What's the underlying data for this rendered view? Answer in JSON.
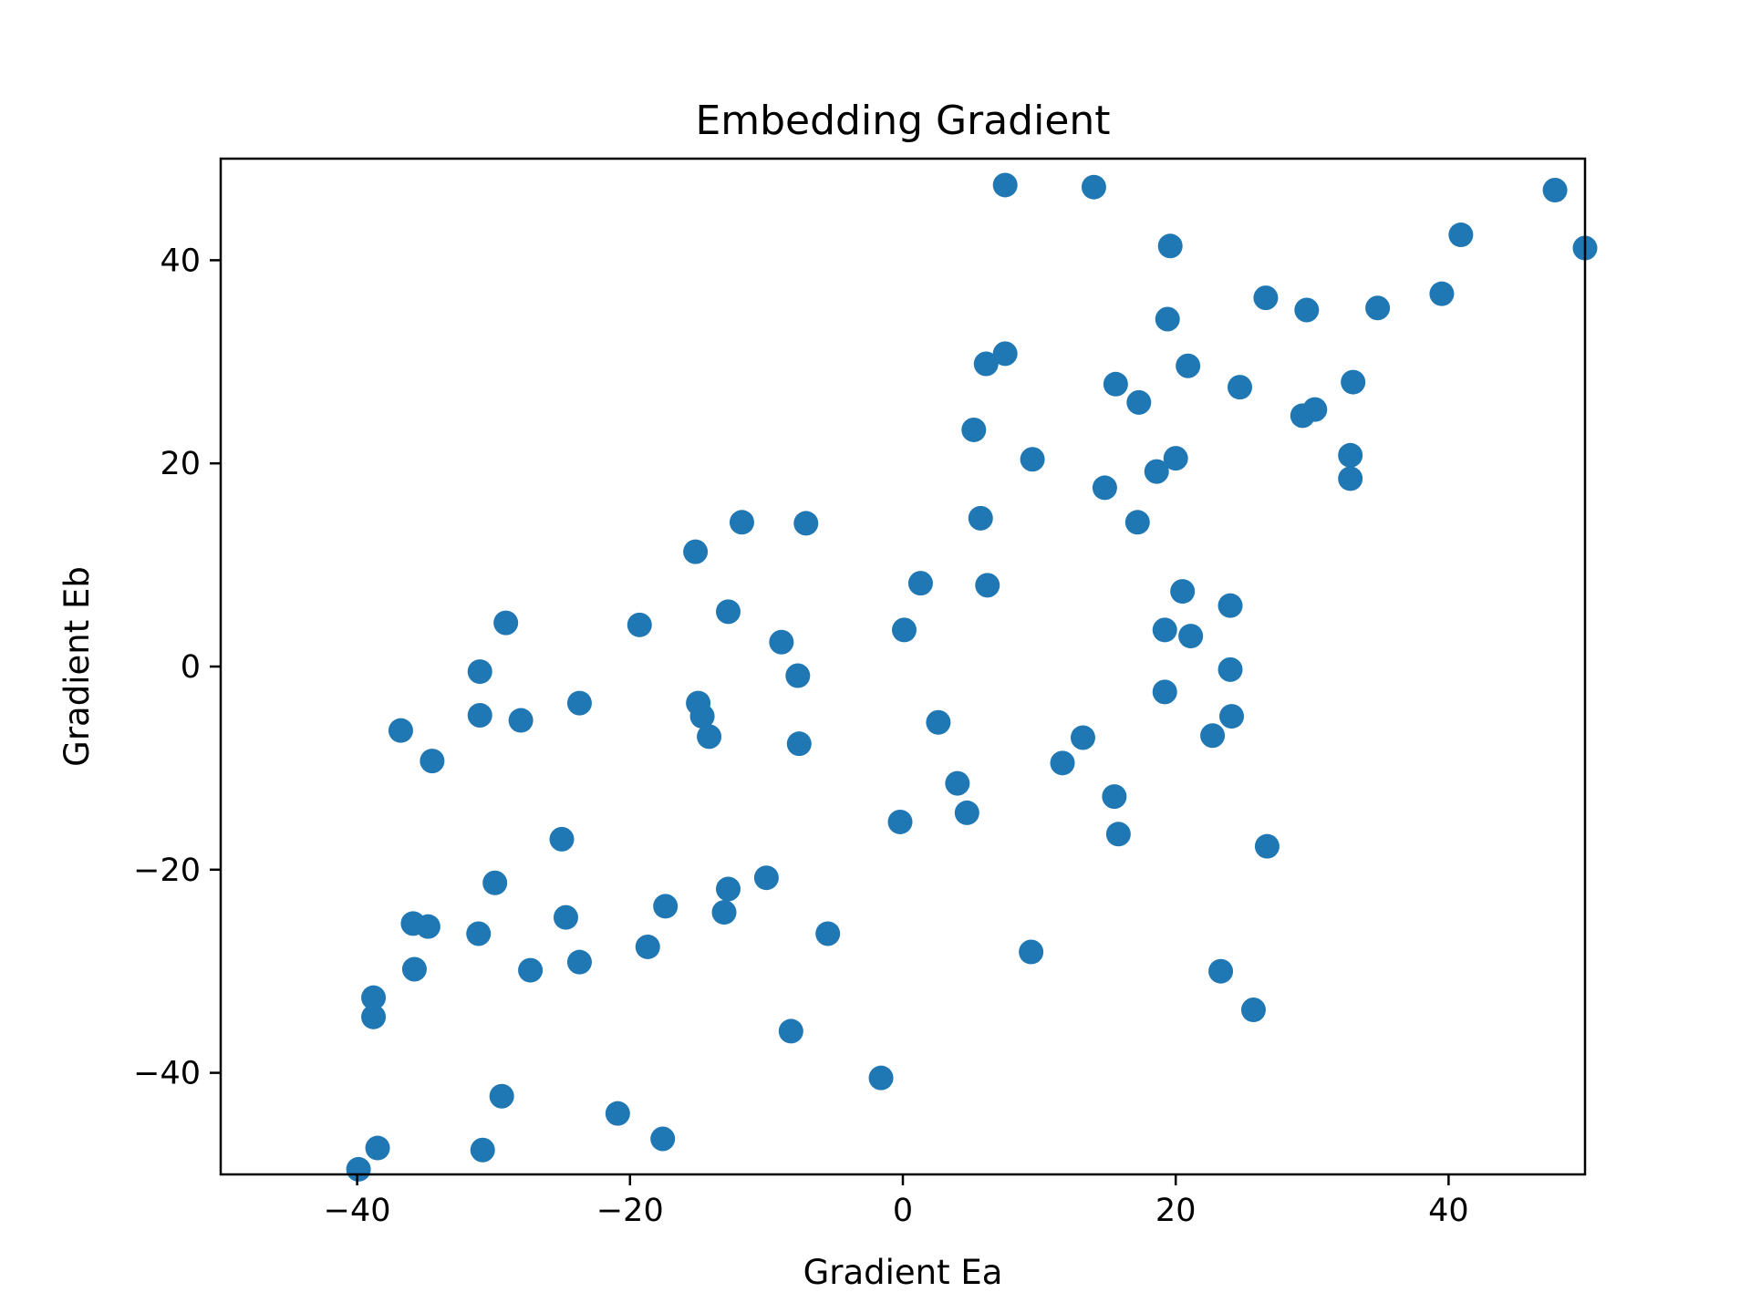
{
  "chart_data": {
    "type": "scatter",
    "title": "Embedding Gradient",
    "xlabel": "Gradient Ea",
    "ylabel": "Gradient Eb",
    "xlim": [
      -50,
      50
    ],
    "ylim": [
      -50,
      50
    ],
    "xticks": [
      -40,
      -20,
      0,
      20,
      40
    ],
    "yticks": [
      -40,
      -20,
      0,
      20,
      40
    ],
    "grid": false,
    "point_color": "#1f77b4",
    "points": [
      [
        7.5,
        47.4
      ],
      [
        14.0,
        47.2
      ],
      [
        47.8,
        46.9
      ],
      [
        19.6,
        41.4
      ],
      [
        40.9,
        42.5
      ],
      [
        50.0,
        41.2
      ],
      [
        26.6,
        36.3
      ],
      [
        29.6,
        35.1
      ],
      [
        34.8,
        35.3
      ],
      [
        39.5,
        36.7
      ],
      [
        19.4,
        34.2
      ],
      [
        7.5,
        30.8
      ],
      [
        6.1,
        29.8
      ],
      [
        20.9,
        29.6
      ],
      [
        15.6,
        27.8
      ],
      [
        24.7,
        27.5
      ],
      [
        33.0,
        28.0
      ],
      [
        17.3,
        26.0
      ],
      [
        29.3,
        24.7
      ],
      [
        30.2,
        25.3
      ],
      [
        5.2,
        23.3
      ],
      [
        9.5,
        20.4
      ],
      [
        20.0,
        20.5
      ],
      [
        18.6,
        19.2
      ],
      [
        32.8,
        20.8
      ],
      [
        32.8,
        18.5
      ],
      [
        14.8,
        17.6
      ],
      [
        5.7,
        14.6
      ],
      [
        17.2,
        14.2
      ],
      [
        -11.8,
        14.2
      ],
      [
        -7.1,
        14.1
      ],
      [
        -15.2,
        11.3
      ],
      [
        1.3,
        8.2
      ],
      [
        6.2,
        8.0
      ],
      [
        20.5,
        7.4
      ],
      [
        24.0,
        6.0
      ],
      [
        -12.8,
        5.4
      ],
      [
        -29.1,
        4.3
      ],
      [
        -19.3,
        4.1
      ],
      [
        0.1,
        3.6
      ],
      [
        19.2,
        3.6
      ],
      [
        21.1,
        3.0
      ],
      [
        -8.9,
        2.4
      ],
      [
        -31.0,
        -0.5
      ],
      [
        -7.7,
        -0.9
      ],
      [
        24.0,
        -0.3
      ],
      [
        -15.0,
        -3.6
      ],
      [
        -23.7,
        -3.6
      ],
      [
        -31.0,
        -4.8
      ],
      [
        -14.7,
        -4.9
      ],
      [
        -28.0,
        -5.3
      ],
      [
        19.2,
        -2.5
      ],
      [
        24.1,
        -4.9
      ],
      [
        2.6,
        -5.5
      ],
      [
        -14.2,
        -6.9
      ],
      [
        -36.8,
        -6.3
      ],
      [
        -7.6,
        -7.6
      ],
      [
        13.2,
        -7.0
      ],
      [
        22.7,
        -6.8
      ],
      [
        -34.5,
        -9.3
      ],
      [
        11.7,
        -9.5
      ],
      [
        4.0,
        -11.5
      ],
      [
        15.5,
        -12.8
      ],
      [
        4.7,
        -14.4
      ],
      [
        -0.2,
        -15.3
      ],
      [
        15.8,
        -16.5
      ],
      [
        -25.0,
        -17.0
      ],
      [
        26.7,
        -17.7
      ],
      [
        -10.0,
        -20.8
      ],
      [
        -29.9,
        -21.3
      ],
      [
        -12.8,
        -21.9
      ],
      [
        -17.4,
        -23.6
      ],
      [
        -13.1,
        -24.2
      ],
      [
        -24.7,
        -24.7
      ],
      [
        -35.9,
        -25.3
      ],
      [
        -34.8,
        -25.6
      ],
      [
        -31.1,
        -26.3
      ],
      [
        -5.5,
        -26.3
      ],
      [
        -18.7,
        -27.6
      ],
      [
        9.4,
        -28.1
      ],
      [
        -23.7,
        -29.1
      ],
      [
        -35.8,
        -29.8
      ],
      [
        -27.3,
        -29.9
      ],
      [
        23.3,
        -30.0
      ],
      [
        -38.8,
        -32.6
      ],
      [
        -38.8,
        -34.5
      ],
      [
        25.7,
        -33.8
      ],
      [
        -8.2,
        -35.9
      ],
      [
        -1.6,
        -40.5
      ],
      [
        -29.4,
        -42.3
      ],
      [
        -20.9,
        -44.0
      ],
      [
        -17.6,
        -46.5
      ],
      [
        -38.5,
        -47.4
      ],
      [
        -30.8,
        -47.6
      ],
      [
        -39.9,
        -49.5
      ]
    ]
  }
}
